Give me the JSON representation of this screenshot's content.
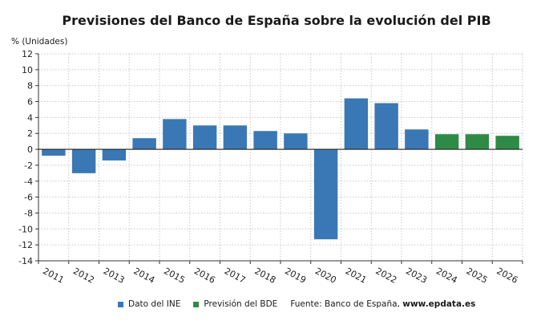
{
  "title": "Previsiones del Banco de España sobre la evolución del PIB",
  "chart_data": {
    "type": "bar",
    "ylabel": "% (Unidades)",
    "xlabel": "",
    "categories": [
      "2011",
      "2012",
      "2013",
      "2014",
      "2015",
      "2016",
      "2017",
      "2018",
      "2019",
      "2020",
      "2021",
      "2022",
      "2023",
      "2024",
      "2025",
      "2026"
    ],
    "series": [
      {
        "name": "Dato del INE",
        "color": "#3a78b5",
        "values": [
          -0.8,
          -3.0,
          -1.4,
          1.4,
          3.8,
          3.0,
          3.0,
          2.3,
          2.0,
          -11.3,
          6.4,
          5.8,
          2.5,
          null,
          null,
          null
        ]
      },
      {
        "name": "Previsión del BDE",
        "color": "#2e8b46",
        "values": [
          null,
          null,
          null,
          null,
          null,
          null,
          null,
          null,
          null,
          null,
          null,
          null,
          null,
          1.9,
          1.9,
          1.7
        ]
      }
    ],
    "ylim": [
      -14,
      12
    ],
    "yticks": [
      -14,
      -12,
      -10,
      -8,
      -6,
      -4,
      -2,
      0,
      2,
      4,
      6,
      8,
      10,
      12
    ],
    "grid": true,
    "legend_position": "bottom"
  },
  "legend": {
    "items": [
      {
        "label": "Dato del INE",
        "color": "#3a78b5"
      },
      {
        "label": "Previsión del BDE",
        "color": "#2e8b46"
      }
    ],
    "source_prefix": "Fuente: Banco de España, ",
    "source_site": "www.epdata.es"
  }
}
